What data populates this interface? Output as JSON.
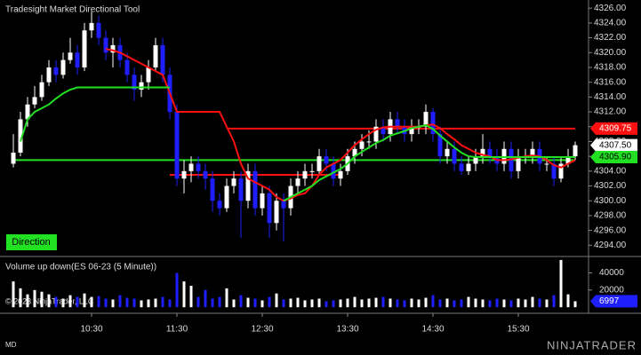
{
  "chart_data": {
    "type": "candlestick",
    "title": "Tradesight Market Directional Tool",
    "indicator_label": "Direction",
    "volume_title": "Volume up down(ES 06-23 (5 Minute))",
    "copyright": "© 2023 NinjaTrader, LLC",
    "corner_label": "MD",
    "logo": "NINJATRADER",
    "categories": [
      null,
      null,
      null,
      null,
      null,
      null,
      null,
      null,
      null,
      null,
      null,
      "10:30",
      null,
      null,
      null,
      null,
      null,
      null,
      null,
      null,
      null,
      null,
      null,
      "11:30",
      null,
      null,
      null,
      null,
      null,
      null,
      null,
      null,
      null,
      null,
      null,
      "12:30",
      null,
      null,
      null,
      null,
      null,
      null,
      null,
      null,
      null,
      null,
      null,
      "13:30",
      null,
      null,
      null,
      null,
      null,
      null,
      null,
      null,
      null,
      null,
      null,
      "14:30",
      null,
      null,
      null,
      null,
      null,
      null,
      null,
      null,
      null,
      null,
      null,
      "15:30",
      null,
      null,
      null,
      null,
      null,
      null,
      null,
      null
    ],
    "open": [
      4305,
      4306.5,
      4311,
      4313,
      4314,
      4316,
      4318,
      4317,
      4319,
      4320,
      4318,
      4323,
      4324,
      4322,
      4320,
      4321,
      4319,
      4317,
      4315,
      4316,
      4318,
      4321,
      4317,
      4312,
      4303,
      4304,
      4305,
      4304,
      4303,
      4300,
      4299,
      4302,
      4303,
      4300,
      4304,
      4299,
      4301,
      4297,
      4300,
      4299,
      4302,
      4303,
      4304,
      4304,
      4306,
      4305,
      4303,
      4304,
      4306,
      4307,
      4308,
      4308,
      4310,
      4309,
      4311,
      4310,
      4309,
      4310,
      4310,
      4312,
      4309,
      4306,
      4307,
      4305,
      4304,
      4305,
      4306,
      4307,
      4306,
      4305,
      4307,
      4304,
      4306,
      4306,
      4307,
      4305,
      4305,
      4303,
      4305,
      4306
    ],
    "high": [
      4309,
      4312,
      4314,
      4315.5,
      4317,
      4319,
      4319,
      4320,
      4322,
      4321,
      4324,
      4325.5,
      4325,
      4323,
      4322,
      4322,
      4320,
      4318,
      4317,
      4319,
      4322,
      4322,
      4318,
      4313,
      4305.5,
      4306,
      4306,
      4305,
      4304,
      4301,
      4303,
      4304,
      4304,
      4305,
      4305,
      4302,
      4302,
      4301,
      4301,
      4303,
      4304,
      4305,
      4305,
      4307,
      4307,
      4306,
      4305,
      4307,
      4308,
      4309,
      4309.5,
      4311,
      4311,
      4312,
      4312,
      4311,
      4311,
      4311,
      4313,
      4312.5,
      4310,
      4308,
      4308,
      4306,
      4306,
      4307,
      4309,
      4308,
      4307,
      4308,
      4308,
      4307,
      4307,
      4308,
      4308,
      4306,
      4306,
      4306,
      4307,
      4308
    ],
    "low": [
      4304.5,
      4306,
      4310,
      4312.5,
      4313.5,
      4315.5,
      4316,
      4316.5,
      4318.5,
      4317,
      4317.5,
      4322,
      4321,
      4319,
      4318,
      4318,
      4316,
      4313.5,
      4314,
      4315,
      4317.5,
      4316,
      4311,
      4302,
      4301,
      4302.5,
      4303,
      4301.5,
      4298.5,
      4298,
      4298.5,
      4301,
      4295,
      4299,
      4298,
      4298,
      4295,
      4296,
      4294.5,
      4298,
      4301,
      4302,
      4303,
      4303.5,
      4304,
      4302,
      4302,
      4303.5,
      4305,
      4306,
      4307,
      4307,
      4308,
      4308,
      4309,
      4308,
      4308,
      4309,
      4309,
      4308,
      4305,
      4305,
      4304,
      4303.5,
      4303.5,
      4304,
      4305,
      4305,
      4304,
      4304,
      4303,
      4303,
      4305,
      4305,
      4304,
      4304,
      4302,
      4302.5,
      4304.5,
      4305.5
    ],
    "close": [
      4306.5,
      4311,
      4313,
      4314,
      4316,
      4318,
      4317,
      4319,
      4320,
      4318,
      4323,
      4324,
      4322,
      4320,
      4321,
      4319,
      4317,
      4315,
      4316,
      4318,
      4321,
      4317,
      4312,
      4303,
      4304,
      4305,
      4304,
      4303,
      4300,
      4299,
      4302,
      4303,
      4300,
      4304,
      4299,
      4301,
      4297,
      4300,
      4299,
      4302,
      4303,
      4304,
      4304,
      4306,
      4305,
      4303,
      4304,
      4306,
      4307,
      4308,
      4308,
      4310,
      4309,
      4311,
      4310,
      4309,
      4310,
      4310,
      4312,
      4309,
      4306,
      4307,
      4305,
      4304,
      4305,
      4306,
      4307,
      4306,
      4305,
      4307,
      4304,
      4306,
      4306,
      4307,
      4305,
      4305,
      4303,
      4305,
      4306,
      4307.5
    ],
    "volume": [
      30000,
      22000,
      15000,
      20000,
      18000,
      15000,
      12000,
      10000,
      14000,
      12000,
      16000,
      12000,
      13000,
      10000,
      9000,
      14000,
      11000,
      10000,
      8000,
      9000,
      10000,
      12000,
      9000,
      40000,
      30000,
      25000,
      12000,
      20000,
      10000,
      12000,
      22000,
      9000,
      14000,
      11000,
      10000,
      8000,
      12000,
      16000,
      9000,
      10000,
      11000,
      8000,
      9000,
      10000,
      7000,
      8000,
      9000,
      10000,
      12000,
      9000,
      10000,
      11000,
      12000,
      10000,
      9000,
      8000,
      10000,
      9000,
      11000,
      14000,
      9000,
      10000,
      8000,
      9000,
      12000,
      10000,
      9000,
      8000,
      10000,
      9000,
      8000,
      10000,
      9000,
      12000,
      10000,
      9000,
      14000,
      55000,
      15000,
      6997
    ],
    "up_color": "#ffffff",
    "down_color": "#1e1eff",
    "series": [
      {
        "color": "#ff1010",
        "values": [
          null,
          null,
          null,
          null,
          null,
          null,
          null,
          null,
          null,
          null,
          null,
          null,
          null,
          4320.5,
          4320.3,
          4320,
          4319.5,
          4319,
          4318.5,
          4318,
          4317.5,
          4317,
          4314.5,
          4312,
          4312,
          4312,
          4312,
          4312,
          4312,
          4312,
          4310,
          4308,
          4305,
          4303,
          4302.5,
          4302,
          4301.5,
          4300.5,
          4300,
          4300.3,
          4300.8,
          4301,
          4302,
          4303.5,
          4304.5,
          4305,
          4305.5,
          4306.5,
          4307.5,
          4308.3,
          4309,
          4309.6,
          4309.9,
          4310,
          4310,
          4310,
          4310,
          4310,
          4310.2,
          4310.3,
          4309.8,
          4309,
          4308.3,
          4307.5,
          4307,
          4306.5,
          4306.2,
          4306,
          4305.5,
          4305.5,
          4305.6,
          4305.8,
          4306,
          4306.1,
          4306,
          4305.5,
          4304.8,
          4304.5,
          4305,
          4305.5
        ]
      },
      {
        "color": "#22e022",
        "values": [
          null,
          4308,
          4311,
          4312,
          4312.5,
          4313,
          4313.8,
          4314.5,
          4315,
          4315.3,
          4315.3,
          4315.3,
          4315.3,
          4315.3,
          4315.3,
          4315.3,
          4315.3,
          4315.3,
          4315.3,
          4315.3,
          4315.3,
          4315.3,
          4315.3,
          null,
          null,
          null,
          null,
          null,
          null,
          null,
          null,
          null,
          null,
          null,
          null,
          null,
          null,
          null,
          4300,
          4300.5,
          4301,
          4301.5,
          4302,
          4302.8,
          4303.3,
          4303.8,
          4304.3,
          4305,
          4306,
          4306.6,
          4307.2,
          4307.8,
          4308.2,
          4308.8,
          4309.1,
          4309.4,
          4309.8,
          4310,
          4310.2,
          4309.7,
          4308.8,
          4308,
          4307.2,
          4306.5,
          4306,
          4305.9,
          4305.9,
          4305.9,
          4305.9,
          4305.9,
          4305.9,
          4305.9,
          4305.9,
          4305.9,
          4305.9,
          4305.9,
          4305.9,
          4305.9,
          4305.9,
          4305.9
        ]
      }
    ],
    "levels": [
      {
        "value": 4305.5,
        "color": "#22e022",
        "from": 0,
        "to": 79
      },
      {
        "value": 4303.5,
        "color": "#ff1010",
        "from": 22,
        "to": 46
      },
      {
        "value": 4309.75,
        "color": "#ff1010",
        "from": 30,
        "to": 79
      }
    ],
    "price_labels": [
      {
        "value": 4309.75,
        "label": "4309.75",
        "color": "#ff1010"
      },
      {
        "value": 4307.5,
        "label": "4307.50",
        "color": "#ffffff"
      },
      {
        "value": 4305.9,
        "label": "4305.90",
        "color": "#22e022"
      }
    ],
    "volume_label": {
      "value": 6997,
      "color": "#1e1eff"
    },
    "ylim": [
      4292.6,
      4327.1
    ],
    "yticks": [
      {
        "value": 4294,
        "label": "4294.00"
      },
      {
        "value": 4296,
        "label": "4296.00"
      },
      {
        "value": 4298,
        "label": "4298.00"
      },
      {
        "value": 4300,
        "label": "4300.00"
      },
      {
        "value": 4302,
        "label": "4302.00"
      },
      {
        "value": 4304,
        "label": "4304.00"
      },
      {
        "value": 4306,
        "label": "4306.00"
      },
      {
        "value": 4308,
        "label": "4308.00"
      },
      {
        "value": 4310,
        "label": "4310.00"
      },
      {
        "value": 4312,
        "label": "4312.00"
      },
      {
        "value": 4314,
        "label": "4314.00"
      },
      {
        "value": 4316,
        "label": "4316.00"
      },
      {
        "value": 4318,
        "label": "4318.00"
      },
      {
        "value": 4320,
        "label": "4320.00"
      },
      {
        "value": 4322,
        "label": "4322.00"
      },
      {
        "value": 4324,
        "label": "4324.00"
      },
      {
        "value": 4326,
        "label": "4326.00"
      }
    ],
    "y2lim": [
      -6000,
      58000
    ],
    "y2ticks": [
      20000,
      40000
    ]
  }
}
